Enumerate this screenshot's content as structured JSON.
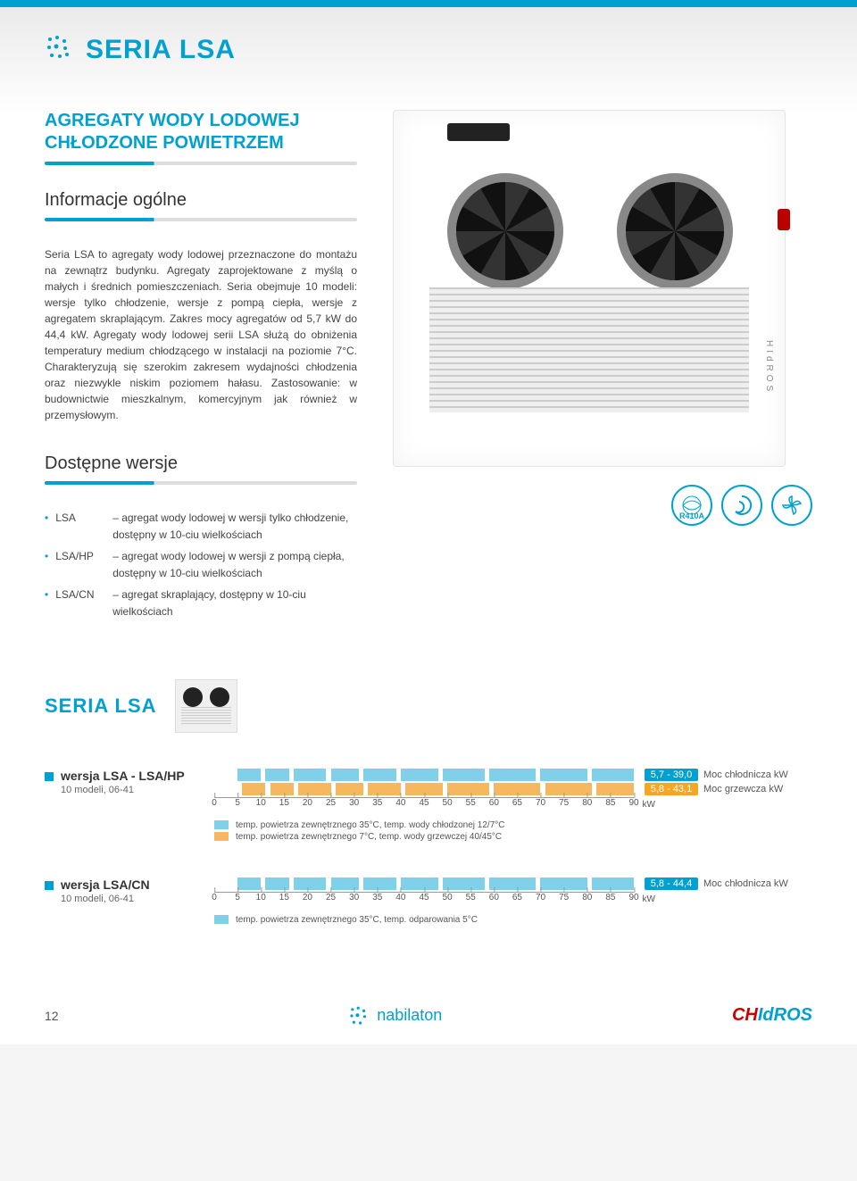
{
  "header": {
    "title": "SERIA LSA"
  },
  "intro": {
    "title_line1": "AGREGATY WODY LODOWEJ",
    "title_line2": "CHŁODZONE POWIETRZEM",
    "section_heading": "Informacje ogólne",
    "body": "Seria LSA to agregaty wody lodowej przeznaczone do montażu na zewnątrz budynku. Agregaty zaprojektowane z myślą o małych i średnich pomieszczeniach. Seria obejmuje 10 modeli: wersje tylko chłodzenie, wersje z pompą ciepła, wersje z agregatem skraplającym. Zakres mocy agregatów od 5,7 kW do 44,4 kW. Agregaty wody lodowej serii LSA służą do obniżenia temperatury medium chłodzącego w instalacji na poziomie 7°C. Charakteryzują się szerokim zakresem wydajności chłodzenia oraz niezwykle niskim poziomem hałasu. Zastosowanie: w budownictwie mieszkalnym, komercyjnym jak również w przemysłowym."
  },
  "versions": {
    "heading": "Dostępne wersje",
    "items": [
      {
        "code": "LSA",
        "desc": "– agregat wody lodowej w wersji tylko chłodzenie, dostępny w 10-ciu wielkościach"
      },
      {
        "code": "LSA/HP",
        "desc": "– agregat wody lodowej w wersji z pompą ciepła, dostępny w 10-ciu wielkościach"
      },
      {
        "code": "LSA/CN",
        "desc": "– agregat skraplający, dostępny w 10-ciu wielkościach"
      }
    ]
  },
  "product_side_label": "HIdROS",
  "badges": {
    "refrigerant": "R410A"
  },
  "series": {
    "heading": "SERIA LSA"
  },
  "ranges": [
    {
      "title": "wersja LSA - LSA/HP",
      "subtitle": "10 modeli, 06-41",
      "axis_max": 90,
      "axis_unit": "kW",
      "ticks": [
        0,
        5,
        10,
        15,
        20,
        25,
        30,
        35,
        40,
        45,
        50,
        55,
        60,
        65,
        70,
        75,
        80,
        85,
        90
      ],
      "bars": [
        {
          "color": "blue",
          "segments": [
            [
              5,
              5
            ],
            [
              11,
              5
            ],
            [
              17,
              7
            ],
            [
              25,
              6
            ],
            [
              32,
              7
            ],
            [
              40,
              8
            ],
            [
              49,
              9
            ],
            [
              59,
              10
            ],
            [
              70,
              10
            ],
            [
              81,
              9
            ]
          ]
        },
        {
          "color": "orange",
          "segments": [
            [
              6,
              5
            ],
            [
              12,
              5
            ],
            [
              18,
              7
            ],
            [
              26,
              6
            ],
            [
              33,
              7
            ],
            [
              41,
              8
            ],
            [
              50,
              9
            ],
            [
              60,
              10
            ],
            [
              71,
              10
            ],
            [
              82,
              8
            ]
          ]
        }
      ],
      "right": [
        {
          "badge_color": "blue",
          "badge": "5,7 - 39,0",
          "label": "Moc chłodnicza kW"
        },
        {
          "badge_color": "orange",
          "badge": "5,8 - 43,1",
          "label": "Moc grzewcza kW"
        }
      ],
      "legend": [
        {
          "color": "blue",
          "text": "temp. powietrza zewnętrznego 35°C, temp. wody chłodzonej 12/7°C"
        },
        {
          "color": "orange",
          "text": "temp. powietrza zewnętrznego 7°C, temp. wody grzewczej 40/45°C"
        }
      ]
    },
    {
      "title": "wersja LSA/CN",
      "subtitle": "10 modeli, 06-41",
      "axis_max": 90,
      "axis_unit": "kW",
      "ticks": [
        0,
        5,
        10,
        15,
        20,
        25,
        30,
        35,
        40,
        45,
        50,
        55,
        60,
        65,
        70,
        75,
        80,
        85,
        90
      ],
      "bars": [
        {
          "color": "blue",
          "segments": [
            [
              5,
              5
            ],
            [
              11,
              5
            ],
            [
              17,
              7
            ],
            [
              25,
              6
            ],
            [
              32,
              7
            ],
            [
              40,
              8
            ],
            [
              49,
              9
            ],
            [
              59,
              10
            ],
            [
              70,
              10
            ],
            [
              81,
              9
            ]
          ]
        }
      ],
      "right": [
        {
          "badge_color": "blue",
          "badge": "5,8 - 44,4",
          "label": "Moc chłodnicza kW"
        }
      ],
      "legend": [
        {
          "color": "blue",
          "text": "temp. powietrza zewnętrznego 35°C, temp. odparowania 5°C"
        }
      ]
    }
  ],
  "footer": {
    "page": "12",
    "brand_left": "nabilaton",
    "brand_right_1": "CH",
    "brand_right_2": "IdROS"
  },
  "colors": {
    "primary": "#00a0d0",
    "bar_blue": "#7fd0e8",
    "bar_orange": "#f5b860",
    "badge_orange": "#f5a623",
    "text": "#444444",
    "axis": "#999999"
  }
}
